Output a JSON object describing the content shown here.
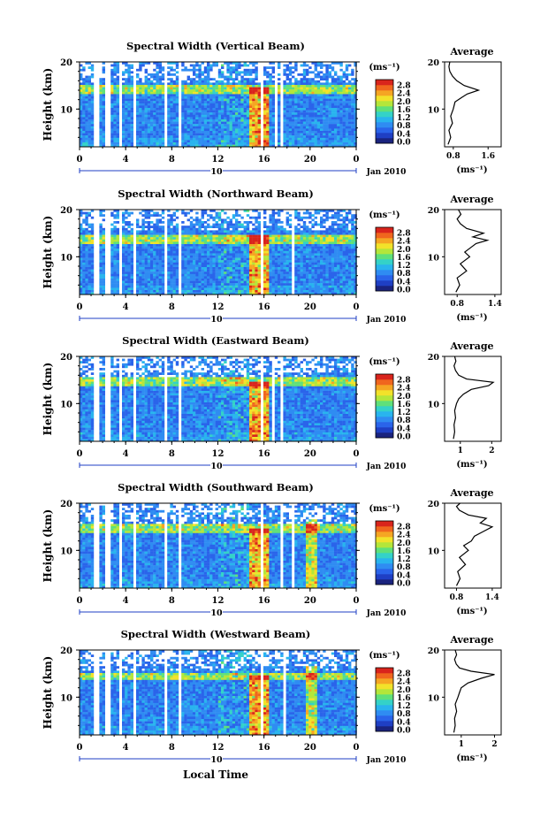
{
  "figure": {
    "x_axis_label": "Local Time",
    "date_label": "Jan 2010",
    "day_label": "10",
    "y_axis_label": "Height (km)",
    "colorbar_unit": "(ms⁻¹)",
    "avg_title": "Average",
    "avg_xunit": "(ms⁻¹)"
  },
  "colors": {
    "scale": [
      "#1a237e",
      "#1f3fc4",
      "#2a64ea",
      "#2f8cf2",
      "#29b4ee",
      "#34d2c8",
      "#5fe07a",
      "#b4e63a",
      "#f2e22a",
      "#f5a623",
      "#f0661e",
      "#d9241c"
    ],
    "background": "#ffffff"
  },
  "chart_data": [
    {
      "type": "heatmap",
      "title": "Spectral Width (Vertical Beam)",
      "x_ticks": [
        "0",
        "4",
        "8",
        "12",
        "16",
        "20",
        "0"
      ],
      "y_ticks": [
        "20",
        "10"
      ],
      "xlim": [
        0,
        24
      ],
      "ylim": [
        2,
        20
      ],
      "colorbar_ticks": [
        "2.8",
        "2.4",
        "2.0",
        "1.6",
        "1.2",
        "0.8",
        "0.4",
        "0.0"
      ],
      "gaps_hours": [
        [
          1.2,
          1.5
        ],
        [
          2.2,
          2.5
        ],
        [
          3.2,
          3.5
        ],
        [
          4.6,
          4.9
        ],
        [
          7.3,
          7.6
        ],
        [
          8.4,
          8.7
        ],
        [
          15.6,
          15.8
        ],
        [
          16.7,
          17.0
        ],
        [
          17.3,
          17.6
        ]
      ],
      "profile": {
        "title": "Average",
        "x_ticks": [
          "0.8",
          "1.6"
        ],
        "xlim": [
          0.6,
          1.9
        ],
        "height": [
          2.5,
          4,
          5.5,
          7,
          8.5,
          10,
          11.5,
          12.5,
          13.2,
          14,
          15,
          16,
          17,
          18,
          19,
          20
        ],
        "value": [
          0.68,
          0.74,
          0.7,
          0.78,
          0.74,
          0.8,
          0.84,
          1.0,
          1.12,
          1.38,
          1.05,
          0.88,
          0.78,
          0.72,
          0.7,
          0.72
        ]
      }
    },
    {
      "type": "heatmap",
      "title": "Spectral Width (Northward Beam)",
      "x_ticks": [
        "0",
        "4",
        "8",
        "12",
        "16",
        "20",
        "0"
      ],
      "y_ticks": [
        "20",
        "10"
      ],
      "xlim": [
        0,
        24
      ],
      "ylim": [
        2,
        20
      ],
      "colorbar_ticks": [
        "2.8",
        "2.4",
        "2.0",
        "1.6",
        "1.2",
        "0.8",
        "0.4",
        "0.0"
      ],
      "gaps_hours": [
        [
          1.2,
          1.5
        ],
        [
          2.2,
          2.5
        ],
        [
          3.2,
          3.5
        ],
        [
          4.6,
          4.9
        ],
        [
          7.3,
          7.6
        ],
        [
          8.4,
          8.7
        ],
        [
          15.6,
          15.8
        ],
        [
          17.2,
          17.4
        ],
        [
          18.3,
          18.6
        ]
      ],
      "profile": {
        "title": "Average",
        "x_ticks": [
          "0.8",
          "1.4"
        ],
        "xlim": [
          0.6,
          1.5
        ],
        "height": [
          2.5,
          4,
          5.5,
          7,
          8.5,
          10,
          11,
          12,
          12.8,
          13.5,
          14.2,
          15,
          16,
          17,
          18,
          19,
          20
        ],
        "value": [
          0.78,
          0.84,
          0.8,
          0.95,
          0.85,
          1.0,
          0.92,
          1.02,
          1.1,
          1.28,
          1.05,
          1.22,
          0.95,
          0.85,
          0.8,
          0.86,
          0.82
        ]
      }
    },
    {
      "type": "heatmap",
      "title": "Spectral Width (Eastward Beam)",
      "x_ticks": [
        "0",
        "4",
        "8",
        "12",
        "16",
        "20",
        "0"
      ],
      "y_ticks": [
        "20",
        "10"
      ],
      "xlim": [
        0,
        24
      ],
      "ylim": [
        2,
        20
      ],
      "colorbar_ticks": [
        "2.8",
        "2.4",
        "2.0",
        "1.6",
        "1.2",
        "0.8",
        "0.4",
        "0.0"
      ],
      "gaps_hours": [
        [
          1.2,
          1.5
        ],
        [
          2.2,
          2.5
        ],
        [
          3.2,
          3.5
        ],
        [
          4.6,
          4.9
        ],
        [
          7.3,
          7.6
        ],
        [
          8.4,
          8.7
        ],
        [
          15.6,
          15.8
        ],
        [
          16.6,
          16.8
        ],
        [
          17.3,
          17.5
        ]
      ],
      "profile": {
        "title": "Average",
        "x_ticks": [
          "1",
          "2"
        ],
        "xlim": [
          0.5,
          2.3
        ],
        "height": [
          2.5,
          4,
          5.5,
          7,
          8.5,
          10,
          11,
          12,
          13,
          13.8,
          14.5,
          15.2,
          16,
          17,
          18,
          19,
          20
        ],
        "value": [
          0.78,
          0.82,
          0.8,
          0.85,
          0.82,
          0.88,
          0.95,
          1.1,
          1.35,
          1.9,
          2.05,
          1.2,
          0.95,
          0.85,
          0.8,
          0.86,
          0.82
        ]
      }
    },
    {
      "type": "heatmap",
      "title": "Spectral Width (Southward Beam)",
      "x_ticks": [
        "0",
        "4",
        "8",
        "12",
        "16",
        "20",
        "0"
      ],
      "y_ticks": [
        "20",
        "10"
      ],
      "xlim": [
        0,
        24
      ],
      "ylim": [
        2,
        20
      ],
      "colorbar_ticks": [
        "2.8",
        "2.4",
        "2.0",
        "1.6",
        "1.2",
        "0.8",
        "0.4",
        "0.0"
      ],
      "gaps_hours": [
        [
          1.2,
          1.5
        ],
        [
          2.2,
          2.5
        ],
        [
          3.2,
          3.5
        ],
        [
          4.6,
          4.9
        ],
        [
          7.3,
          7.6
        ],
        [
          8.4,
          8.7
        ],
        [
          15.6,
          15.8
        ],
        [
          17.4,
          17.6
        ],
        [
          18.4,
          18.6
        ]
      ],
      "profile": {
        "title": "Average",
        "x_ticks": [
          "0.8",
          "1.4"
        ],
        "xlim": [
          0.6,
          1.55
        ],
        "height": [
          2.5,
          4,
          5.5,
          7,
          8.5,
          10,
          11,
          12,
          13,
          14,
          15,
          15.8,
          16.8,
          17.5,
          18.5,
          19.3,
          20
        ],
        "value": [
          0.8,
          0.86,
          0.82,
          0.95,
          0.85,
          1.0,
          0.92,
          1.05,
          1.1,
          1.25,
          1.4,
          1.2,
          1.3,
          1.0,
          0.85,
          0.8,
          0.86
        ]
      }
    },
    {
      "type": "heatmap",
      "title": "Spectral Width (Westward Beam)",
      "x_ticks": [
        "0",
        "4",
        "8",
        "12",
        "16",
        "20",
        "0"
      ],
      "y_ticks": [
        "20",
        "10"
      ],
      "xlim": [
        0,
        24
      ],
      "ylim": [
        2,
        20
      ],
      "colorbar_ticks": [
        "2.8",
        "2.4",
        "2.0",
        "1.6",
        "1.2",
        "0.8",
        "0.4",
        "0.0"
      ],
      "gaps_hours": [
        [
          1.2,
          1.5
        ],
        [
          2.2,
          2.5
        ],
        [
          3.2,
          3.5
        ],
        [
          4.6,
          4.9
        ],
        [
          7.3,
          7.6
        ],
        [
          8.4,
          8.7
        ],
        [
          15.6,
          15.8
        ],
        [
          16.7,
          16.9
        ],
        [
          17.6,
          17.8
        ]
      ],
      "profile": {
        "title": "Average",
        "x_ticks": [
          "1",
          "2"
        ],
        "xlim": [
          0.5,
          2.2
        ],
        "height": [
          2.5,
          4,
          5.5,
          7,
          8.5,
          10,
          11,
          12,
          13,
          14,
          14.8,
          15.5,
          16.2,
          17,
          18,
          19,
          20
        ],
        "value": [
          0.78,
          0.82,
          0.8,
          0.86,
          0.82,
          0.9,
          0.95,
          1.0,
          1.2,
          1.6,
          2.0,
          1.3,
          0.95,
          0.85,
          0.8,
          0.86,
          0.82
        ]
      }
    }
  ]
}
